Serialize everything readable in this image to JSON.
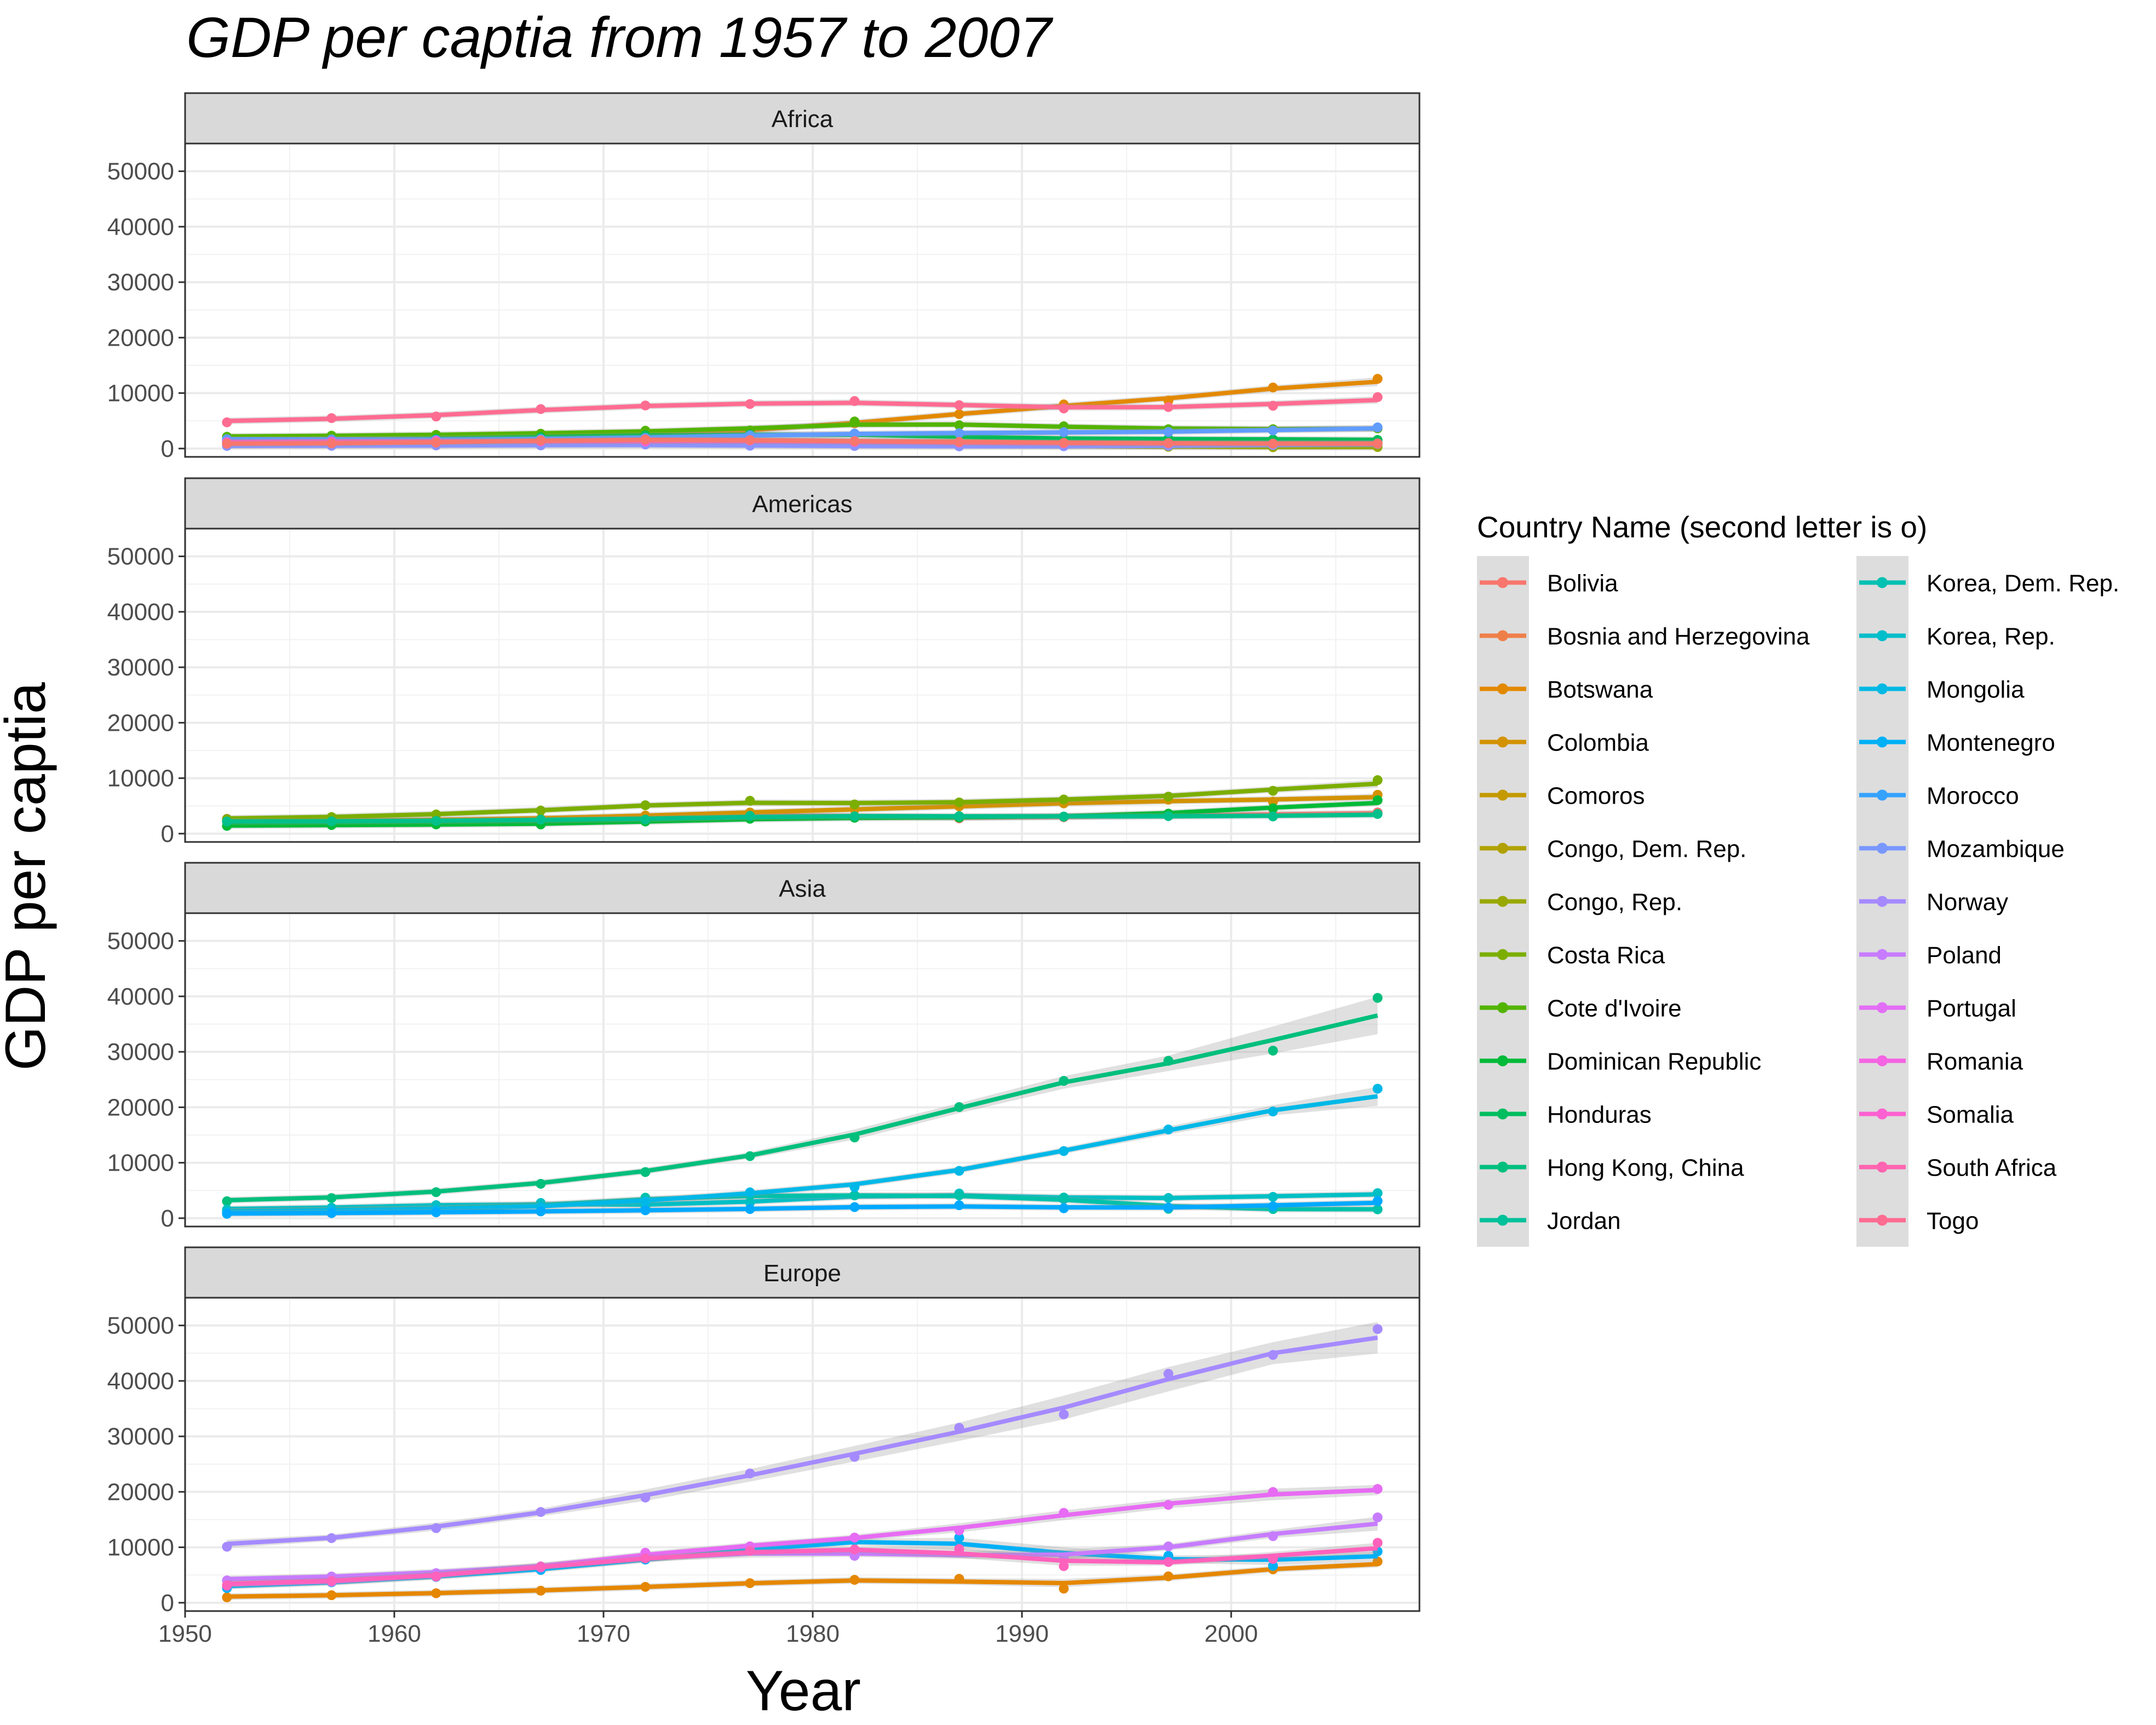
{
  "chart_data": {
    "type": "line",
    "title": "GDP per captia from 1957 to 2007",
    "xlabel": "Year",
    "ylabel": "GDP per captia",
    "xlim": [
      1950,
      2009
    ],
    "ylim": [
      -1500,
      55000
    ],
    "x_ticks": [
      "1950",
      "1960",
      "1970",
      "1980",
      "1990",
      "2000"
    ],
    "y_ticks": [
      "0",
      "10000",
      "20000",
      "30000",
      "40000",
      "50000"
    ],
    "grid": true,
    "smoothing_ribbon": true,
    "legend": {
      "title": "Country Name (second letter is o)",
      "position": "right",
      "columns": 2
    },
    "years": [
      1952,
      1957,
      1962,
      1967,
      1972,
      1977,
      1982,
      1987,
      1992,
      1997,
      2002,
      2007
    ],
    "panels": [
      {
        "name": "Africa",
        "series": [
          {
            "name": "Botswana",
            "color": "#E38900",
            "values": [
              851,
              918,
              984,
              1215,
              2264,
              3215,
              4551,
              6206,
              7954,
              8647,
              11004,
              12570
            ]
          },
          {
            "name": "Comoros",
            "color": "#C49A00",
            "values": [
              1103,
              1211,
              1407,
              1876,
              1938,
              1173,
              1268,
              1316,
              1246,
              1174,
              1076,
              986
            ]
          },
          {
            "name": "Congo, Dem. Rep.",
            "color": "#99A800",
            "values": [
              781,
              906,
              896,
              862,
              905,
              796,
              674,
              672,
              457,
              312,
              241,
              278
            ]
          },
          {
            "name": "Congo, Rep.",
            "color": "#53B400",
            "values": [
              2126,
              2315,
              2465,
              2678,
              3213,
              3259,
              4880,
              4201,
              4016,
              3484,
              3484,
              3633
            ]
          },
          {
            "name": "Cote d'Ivoire",
            "color": "#00BC56",
            "values": [
              1389,
              1500,
              1729,
              2053,
              2378,
              2518,
              2603,
              2157,
              1648,
              1786,
              1648,
              1545
            ]
          },
          {
            "name": "Morocco",
            "color": "#619CFF",
            "values": [
              1688,
              1643,
              1566,
              1711,
              1930,
              2371,
              2703,
              2756,
              2948,
              2982,
              3259,
              3820
            ]
          },
          {
            "name": "Mozambique",
            "color": "#8B93FF",
            "values": [
              469,
              495,
              556,
              566,
              724,
              502,
              462,
              390,
              410,
              473,
              634,
              824
            ]
          },
          {
            "name": "Somalia",
            "color": "#FF61C3",
            "values": [
              1136,
              1258,
              1369,
              1285,
              1254,
              1451,
              1176,
              1093,
              927,
              930,
              882,
              926
            ]
          },
          {
            "name": "South Africa",
            "color": "#FF6C91",
            "values": [
              4725,
              5487,
              5769,
              7114,
              7766,
              8029,
              8568,
              7826,
              7226,
              7479,
              7711,
              9270
            ]
          },
          {
            "name": "Togo",
            "color": "#F8766D",
            "values": [
              859,
              925,
              1068,
              1478,
              1650,
              1533,
              1345,
              1202,
              1034,
              982,
              886,
              883
            ]
          }
        ]
      },
      {
        "name": "Americas",
        "series": [
          {
            "name": "Bolivia",
            "color": "#F8766D",
            "values": [
              2677,
              2128,
              2181,
              2587,
              2980,
              3548,
              3157,
              2754,
              2962,
              3327,
              3413,
              3822
            ]
          },
          {
            "name": "Colombia",
            "color": "#D39200",
            "values": [
              2144,
              2323,
              2492,
              2679,
              3265,
              3815,
              4398,
              4903,
              5445,
              6117,
              5755,
              7007
            ]
          },
          {
            "name": "Costa Rica",
            "color": "#7CAE00",
            "values": [
              2627,
              2990,
              3461,
              4162,
              5118,
              5927,
              5263,
              5630,
              6161,
              6677,
              7723,
              9645
            ]
          },
          {
            "name": "Dominican Republic",
            "color": "#00BA38",
            "values": [
              1398,
              1545,
              1662,
              1654,
              2190,
              2682,
              2862,
              2899,
              3045,
              3614,
              4564,
              6025
            ]
          },
          {
            "name": "Honduras",
            "color": "#00C08B",
            "values": [
              2195,
              2220,
              2292,
              2538,
              2529,
              3204,
              3122,
              3159,
              3082,
              3160,
              3099,
              3548
            ]
          }
        ]
      },
      {
        "name": "Asia",
        "series": [
          {
            "name": "Hong Kong, China",
            "color": "#00BF7D",
            "values": [
              3054,
              3629,
              4693,
              6198,
              8316,
              11186,
              14561,
              20038,
              24758,
              28378,
              30209,
              39725
            ]
          },
          {
            "name": "Jordan",
            "color": "#00BFC4",
            "values": [
              1547,
              1886,
              2348,
              2742,
              2110,
              2852,
              4162,
              4449,
              3431,
              3645,
              3845,
              4519
            ]
          },
          {
            "name": "Korea, Dem. Rep.",
            "color": "#00C1AA",
            "values": [
              1088,
              1571,
              1622,
              2144,
              3702,
              4106,
              4106,
              4106,
              3726,
              1691,
              1647,
              1593
            ]
          },
          {
            "name": "Korea, Rep.",
            "color": "#00B8E7",
            "values": [
              1031,
              1488,
              1536,
              2029,
              3031,
              4657,
              5623,
              8533,
              12104,
              15994,
              19234,
              23348
            ]
          },
          {
            "name": "Mongolia",
            "color": "#00A9FF",
            "values": [
              787,
              912,
              1056,
              1226,
              1421,
              1648,
              2000,
              2339,
              1785,
              1902,
              2141,
              3096
            ]
          }
        ]
      },
      {
        "name": "Europe",
        "series": [
          {
            "name": "Bosnia and Herzegovina",
            "color": "#E58700",
            "values": [
              974,
              1354,
              1710,
              2172,
              2860,
              3528,
              4127,
              4314,
              2547,
              4766,
              6019,
              7446
            ]
          },
          {
            "name": "Montenegro",
            "color": "#00B0F6",
            "values": [
              2648,
              3682,
              4650,
              5907,
              7779,
              9596,
              11222,
              11733,
              7860,
              8472,
              6649,
              9254
            ]
          },
          {
            "name": "Norway",
            "color": "#A58AFF",
            "values": [
              10095,
              11654,
              13450,
              16362,
              18965,
              23311,
              26299,
              31541,
              33965,
              41283,
              44684,
              49357
            ]
          },
          {
            "name": "Poland",
            "color": "#C77CFF",
            "values": [
              4029,
              4734,
              5339,
              6557,
              8006,
              9508,
              8452,
              9082,
              7739,
              10160,
              12002,
              15390
            ]
          },
          {
            "name": "Portugal",
            "color": "#E76BF3",
            "values": [
              3068,
              3775,
              4728,
              6361,
              9022,
              10172,
              11754,
              13039,
              16207,
              17641,
              19971,
              20510
            ]
          },
          {
            "name": "Romania",
            "color": "#FF62BC",
            "values": [
              3144,
              3943,
              4734,
              6471,
              8011,
              9356,
              9605,
              9697,
              6598,
              7346,
              7886,
              10808
            ]
          }
        ]
      }
    ],
    "legend_entries": [
      {
        "name": "Bolivia",
        "color": "#F8766D"
      },
      {
        "name": "Bosnia and Herzegovina",
        "color": "#EF7F49"
      },
      {
        "name": "Botswana",
        "color": "#E38900"
      },
      {
        "name": "Colombia",
        "color": "#D39200"
      },
      {
        "name": "Comoros",
        "color": "#C49A00"
      },
      {
        "name": "Congo, Dem. Rep.",
        "color": "#B0A100"
      },
      {
        "name": "Congo, Rep.",
        "color": "#99A800"
      },
      {
        "name": "Costa Rica",
        "color": "#7CAE00"
      },
      {
        "name": "Cote d'Ivoire",
        "color": "#53B400"
      },
      {
        "name": "Dominican Republic",
        "color": "#00BA38"
      },
      {
        "name": "Honduras",
        "color": "#00BD5F"
      },
      {
        "name": "Hong Kong, China",
        "color": "#00BF7D"
      },
      {
        "name": "Jordan",
        "color": "#00C19A"
      },
      {
        "name": "Korea, Dem. Rep.",
        "color": "#00C1B2"
      },
      {
        "name": "Korea, Rep.",
        "color": "#00BECA"
      },
      {
        "name": "Mongolia",
        "color": "#00B9E3"
      },
      {
        "name": "Montenegro",
        "color": "#00B0F6"
      },
      {
        "name": "Morocco",
        "color": "#35A2FF"
      },
      {
        "name": "Mozambique",
        "color": "#7997FF"
      },
      {
        "name": "Norway",
        "color": "#A58AFF"
      },
      {
        "name": "Poland",
        "color": "#C77CFF"
      },
      {
        "name": "Portugal",
        "color": "#E36EF6"
      },
      {
        "name": "Romania",
        "color": "#F564E3"
      },
      {
        "name": "Somalia",
        "color": "#FD61D1"
      },
      {
        "name": "South Africa",
        "color": "#FF64B0"
      },
      {
        "name": "Togo",
        "color": "#FF6C91"
      }
    ]
  }
}
